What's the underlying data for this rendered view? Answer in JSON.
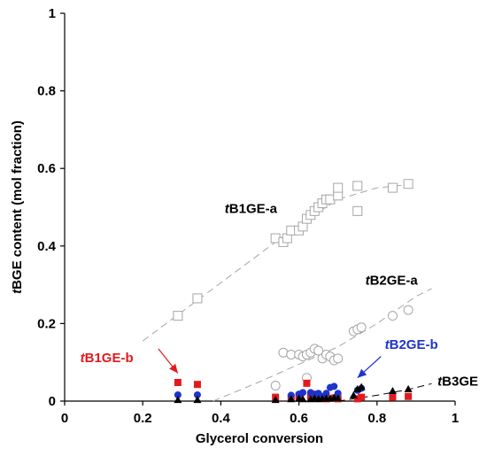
{
  "chart_data": {
    "type": "scatter",
    "xlabel": "Glycerol conversion",
    "ylabel": "tBGE content (mol fraction)",
    "xlim": [
      0,
      1
    ],
    "ylim": [
      0,
      1
    ],
    "xticks": [
      "0",
      "0.2",
      "0.4",
      "0.6",
      "0.8",
      "1"
    ],
    "yticks": [
      "0",
      "0.2",
      "0.4",
      "0.6",
      "0.8",
      "1"
    ],
    "grid": false,
    "series": [
      {
        "name": "tB1GE-a",
        "marker": "open-square",
        "color": "#a6a6a6",
        "points": [
          [
            0.29,
            0.22
          ],
          [
            0.34,
            0.265
          ],
          [
            0.54,
            0.42
          ],
          [
            0.56,
            0.41
          ],
          [
            0.57,
            0.42
          ],
          [
            0.58,
            0.44
          ],
          [
            0.6,
            0.44
          ],
          [
            0.61,
            0.45
          ],
          [
            0.62,
            0.47
          ],
          [
            0.63,
            0.48
          ],
          [
            0.64,
            0.49
          ],
          [
            0.65,
            0.5
          ],
          [
            0.66,
            0.51
          ],
          [
            0.67,
            0.52
          ],
          [
            0.68,
            0.52
          ],
          [
            0.7,
            0.53
          ],
          [
            0.7,
            0.55
          ],
          [
            0.75,
            0.555
          ],
          [
            0.75,
            0.49
          ],
          [
            0.84,
            0.55
          ],
          [
            0.88,
            0.56
          ]
        ]
      },
      {
        "name": "tB2GE-a",
        "marker": "open-circle",
        "color": "#a6a6a6",
        "points": [
          [
            0.54,
            0.04
          ],
          [
            0.56,
            0.125
          ],
          [
            0.58,
            0.12
          ],
          [
            0.6,
            0.12
          ],
          [
            0.61,
            0.115
          ],
          [
            0.62,
            0.12
          ],
          [
            0.63,
            0.125
          ],
          [
            0.64,
            0.135
          ],
          [
            0.65,
            0.13
          ],
          [
            0.66,
            0.11
          ],
          [
            0.67,
            0.12
          ],
          [
            0.68,
            0.115
          ],
          [
            0.69,
            0.105
          ],
          [
            0.7,
            0.11
          ],
          [
            0.74,
            0.18
          ],
          [
            0.75,
            0.185
          ],
          [
            0.76,
            0.19
          ],
          [
            0.84,
            0.22
          ],
          [
            0.88,
            0.235
          ],
          [
            0.62,
            0.06
          ]
        ]
      },
      {
        "name": "tB1GE-b",
        "marker": "filled-square",
        "color": "#e31a1c",
        "points": [
          [
            0.29,
            0.048
          ],
          [
            0.34,
            0.043
          ],
          [
            0.54,
            0.01
          ],
          [
            0.58,
            0.008
          ],
          [
            0.6,
            0.012
          ],
          [
            0.62,
            0.046
          ],
          [
            0.63,
            0.012
          ],
          [
            0.65,
            0.01
          ],
          [
            0.67,
            0.006
          ],
          [
            0.69,
            0.008
          ],
          [
            0.7,
            0.006
          ],
          [
            0.75,
            0.006
          ],
          [
            0.76,
            0.01
          ],
          [
            0.84,
            0.01
          ],
          [
            0.88,
            0.012
          ]
        ]
      },
      {
        "name": "tB2GE-b",
        "marker": "filled-circle",
        "color": "#1f33cc",
        "points": [
          [
            0.29,
            0.016
          ],
          [
            0.34,
            0.016
          ],
          [
            0.58,
            0.015
          ],
          [
            0.6,
            0.018
          ],
          [
            0.61,
            0.022
          ],
          [
            0.63,
            0.022
          ],
          [
            0.64,
            0.018
          ],
          [
            0.65,
            0.02
          ],
          [
            0.66,
            0.012
          ],
          [
            0.67,
            0.02
          ],
          [
            0.68,
            0.035
          ],
          [
            0.69,
            0.038
          ],
          [
            0.7,
            0.02
          ],
          [
            0.75,
            0.028
          ],
          [
            0.76,
            0.033
          ]
        ]
      },
      {
        "name": "tB3GE",
        "marker": "filled-triangle",
        "color": "#000000",
        "points": [
          [
            0.29,
            0.002
          ],
          [
            0.34,
            0.002
          ],
          [
            0.54,
            0.002
          ],
          [
            0.58,
            0.004
          ],
          [
            0.6,
            0.005
          ],
          [
            0.61,
            0.004
          ],
          [
            0.63,
            0.004
          ],
          [
            0.64,
            0.006
          ],
          [
            0.65,
            0.004
          ],
          [
            0.66,
            0.005
          ],
          [
            0.67,
            0.006
          ],
          [
            0.68,
            0.005
          ],
          [
            0.69,
            0.008
          ],
          [
            0.7,
            0.006
          ],
          [
            0.74,
            0.014
          ],
          [
            0.75,
            0.03
          ],
          [
            0.76,
            0.035
          ],
          [
            0.84,
            0.025
          ],
          [
            0.88,
            0.03
          ]
        ]
      }
    ],
    "trend_lines": [
      {
        "name": "tB1GE-a",
        "color": "#a6a6a6",
        "points": [
          [
            0.2,
            0.155
          ],
          [
            0.3,
            0.23
          ],
          [
            0.4,
            0.305
          ],
          [
            0.5,
            0.38
          ],
          [
            0.6,
            0.455
          ],
          [
            0.7,
            0.52
          ],
          [
            0.8,
            0.55
          ],
          [
            0.9,
            0.56
          ]
        ]
      },
      {
        "name": "tB2GE-a",
        "color": "#a6a6a6",
        "points": [
          [
            0.38,
            0.0
          ],
          [
            0.5,
            0.05
          ],
          [
            0.6,
            0.095
          ],
          [
            0.7,
            0.14
          ],
          [
            0.8,
            0.2
          ],
          [
            0.9,
            0.27
          ],
          [
            0.94,
            0.29
          ]
        ]
      },
      {
        "name": "tB3GE",
        "color": "#000000",
        "points": [
          [
            0.7,
            0.0
          ],
          [
            0.8,
            0.015
          ],
          [
            0.88,
            0.03
          ],
          [
            0.94,
            0.045
          ]
        ]
      }
    ],
    "annotations": [
      {
        "text": "tB1GE-a",
        "italic_prefix": "t",
        "rest": "B1GE-a",
        "color": "#000000",
        "x": 0.41,
        "y": 0.485
      },
      {
        "text": "tB2GE-a",
        "italic_prefix": "t",
        "rest": "B2GE-a",
        "color": "#000000",
        "x": 0.77,
        "y": 0.3
      },
      {
        "text": "tB1GE-b",
        "italic_prefix": "t",
        "rest": "B1GE-b",
        "color": "#e31a1c",
        "x": 0.04,
        "y": 0.1
      },
      {
        "text": "tB2GE-b",
        "italic_prefix": "t",
        "rest": "B2GE-b",
        "color": "#1f33cc",
        "x": 0.82,
        "y": 0.135
      },
      {
        "text": "tB3GE",
        "italic_prefix": "t",
        "rest": "B3GE",
        "color": "#000000",
        "x": 0.955,
        "y": 0.04
      }
    ],
    "arrows": [
      {
        "name": "tB1GE-b",
        "color": "#e31a1c",
        "from": [
          0.24,
          0.135
        ],
        "to": [
          0.29,
          0.072
        ]
      },
      {
        "name": "tB2GE-b",
        "color": "#1f33cc",
        "from": [
          0.81,
          0.115
        ],
        "to": [
          0.75,
          0.06
        ]
      }
    ]
  }
}
